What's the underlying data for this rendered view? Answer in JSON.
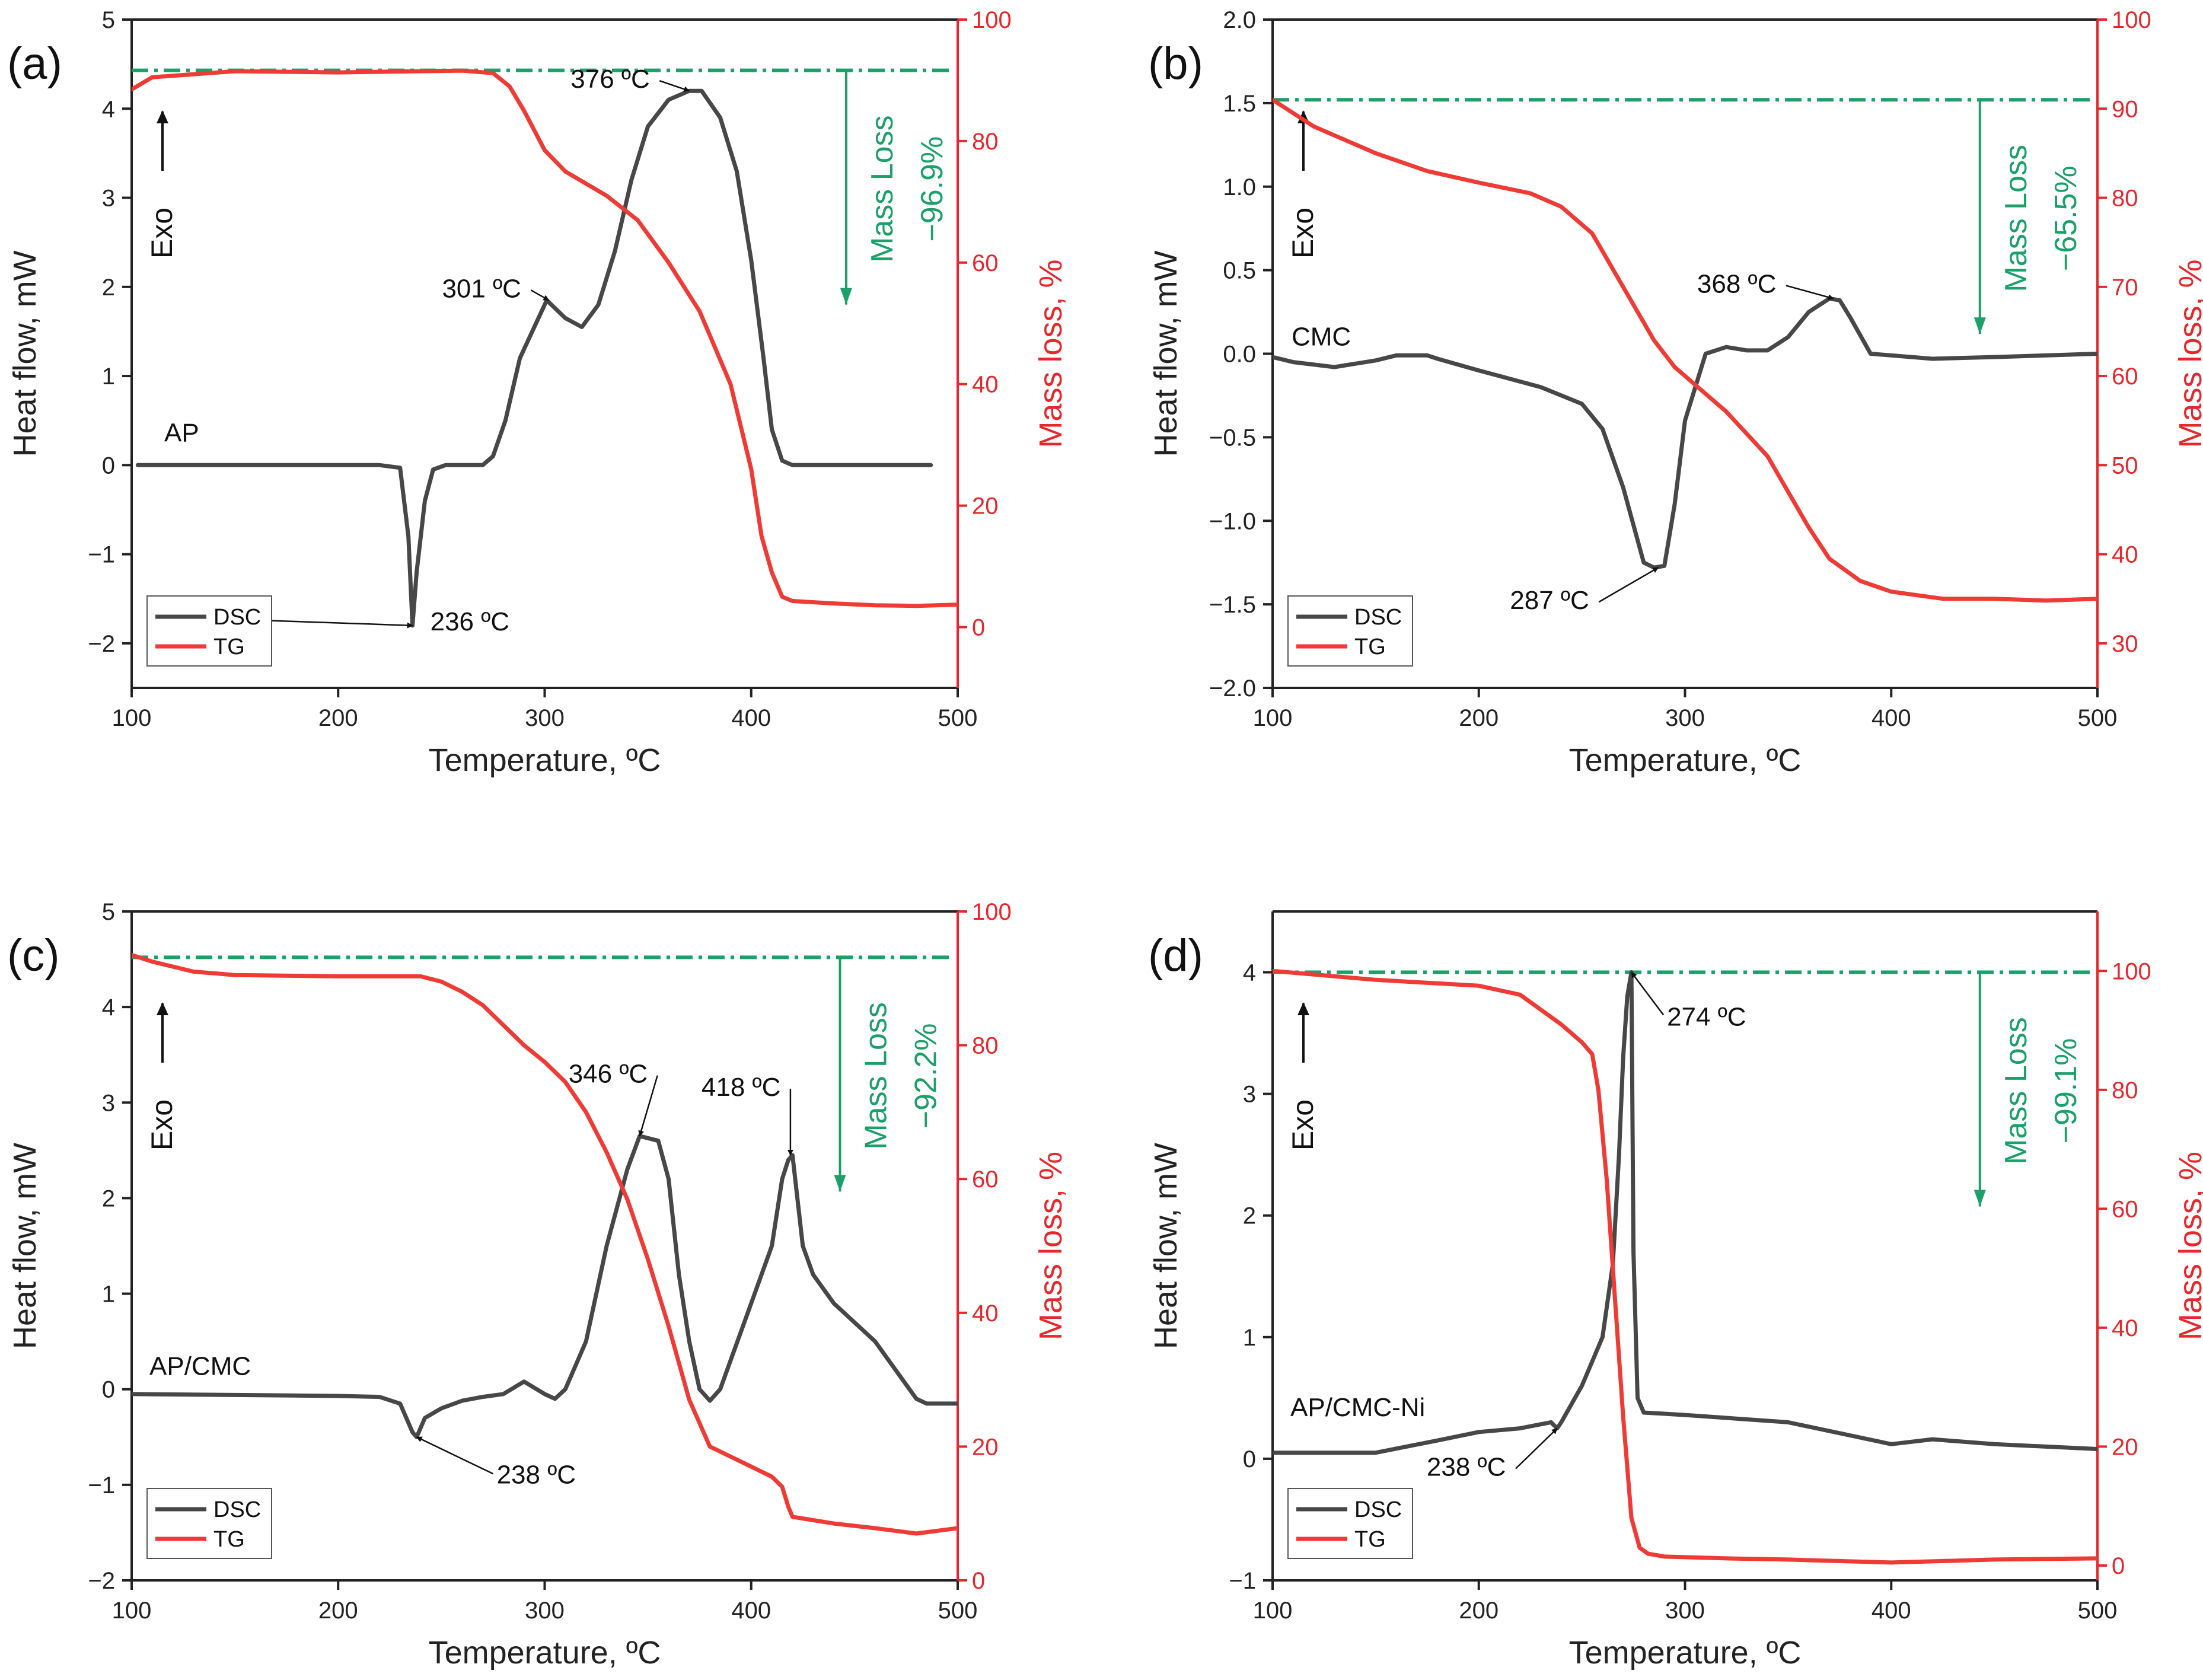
{
  "figure": {
    "colors": {
      "dsc": "#474747",
      "tg": "#ee3b36",
      "mass_loss": "#1aa068",
      "right_axis": "#e8262b",
      "axis": "#222222"
    }
  },
  "chart_data": [
    {
      "type": "line",
      "panel_label": "(a)",
      "sample_label": "AP",
      "xlabel": "Temperature, ºC",
      "ylabel_left": "Heat flow, mW",
      "ylabel_right": "Mass loss, %",
      "xlim": [
        100,
        500
      ],
      "xticks": [
        100,
        200,
        300,
        400,
        500
      ],
      "ylim_left": [
        -2.5,
        5
      ],
      "yticks_left": [
        -2,
        -1,
        0,
        1,
        2,
        3,
        4,
        5
      ],
      "ylim_right": [
        -10,
        100
      ],
      "yticks_right": [
        0,
        20,
        40,
        60,
        80,
        100
      ],
      "exo_label": "Exo",
      "mass_loss_label": "Mass Loss",
      "mass_loss_value": "−96.9%",
      "mass_loss_line_y": 4.43,
      "mass_loss_arrow_x": 446,
      "legend": [
        "DSC",
        "TG"
      ],
      "series": [
        {
          "name": "DSC",
          "axis": "left",
          "x": [
            103,
            150,
            200,
            220,
            230,
            234,
            236,
            238,
            242,
            246,
            252,
            260,
            270,
            275,
            281,
            288,
            301,
            310,
            318,
            326,
            334,
            342,
            350,
            360,
            370,
            376,
            385,
            393,
            400,
            406,
            410,
            415,
            420,
            440,
            460,
            480,
            487
          ],
          "y": [
            0,
            0,
            0,
            0,
            -0.03,
            -0.8,
            -1.8,
            -1.2,
            -0.4,
            -0.05,
            0,
            0,
            0,
            0.1,
            0.5,
            1.2,
            1.85,
            1.65,
            1.55,
            1.8,
            2.4,
            3.2,
            3.8,
            4.1,
            4.2,
            4.2,
            3.9,
            3.3,
            2.3,
            1.2,
            0.4,
            0.05,
            0,
            0,
            0,
            0,
            0
          ]
        },
        {
          "name": "TG",
          "axis": "right",
          "x": [
            100,
            110,
            130,
            150,
            200,
            240,
            260,
            275,
            283,
            290,
            300,
            310,
            330,
            345,
            360,
            375,
            390,
            400,
            405,
            410,
            415,
            420,
            440,
            460,
            480,
            500
          ],
          "y": [
            88.5,
            90.5,
            91,
            91.5,
            91.3,
            91.5,
            91.6,
            91.2,
            89,
            85,
            78.5,
            75,
            71,
            67,
            60,
            52,
            40,
            26,
            15,
            9,
            5,
            4.3,
            3.9,
            3.6,
            3.5,
            3.7
          ]
        }
      ],
      "annotations": [
        {
          "text": "376 ºC",
          "x": 370,
          "y": 4.2
        },
        {
          "text": "301 ºC",
          "x": 302,
          "y": 1.85
        },
        {
          "text": "236 ºC",
          "x": 236,
          "y": -1.8
        }
      ]
    },
    {
      "type": "line",
      "panel_label": "(b)",
      "sample_label": "CMC",
      "xlabel": "Temperature, ºC",
      "ylabel_left": "Heat flow, mW",
      "ylabel_right": "Mass loss, %",
      "xlim": [
        100,
        500
      ],
      "xticks": [
        100,
        200,
        300,
        400,
        500
      ],
      "ylim_left": [
        -2,
        2
      ],
      "yticks_left": [
        -2.0,
        -1.5,
        -1.0,
        -0.5,
        0.0,
        0.5,
        1.0,
        1.5,
        2.0
      ],
      "ylim_right": [
        25,
        100
      ],
      "yticks_right": [
        30,
        40,
        50,
        60,
        70,
        80,
        90,
        100
      ],
      "exo_label": "Exo",
      "mass_loss_label": "Mass Loss",
      "mass_loss_value": "−65.5%",
      "mass_loss_line_y": 1.52,
      "mass_loss_arrow_x": 443,
      "legend": [
        "DSC",
        "TG"
      ],
      "series": [
        {
          "name": "DSC",
          "axis": "left",
          "x": [
            100,
            110,
            130,
            150,
            160,
            175,
            180,
            200,
            230,
            250,
            260,
            270,
            280,
            285,
            290,
            295,
            300,
            310,
            320,
            330,
            340,
            350,
            360,
            370,
            375,
            380,
            390,
            420,
            450,
            500
          ],
          "y": [
            -0.02,
            -0.05,
            -0.08,
            -0.04,
            -0.01,
            -0.01,
            -0.03,
            -0.1,
            -0.2,
            -0.3,
            -0.45,
            -0.8,
            -1.25,
            -1.28,
            -1.27,
            -0.9,
            -0.4,
            0,
            0.04,
            0.02,
            0.02,
            0.1,
            0.25,
            0.33,
            0.32,
            0.22,
            0.0,
            -0.03,
            -0.02,
            0.0
          ]
        },
        {
          "name": "TG",
          "axis": "right",
          "x": [
            100,
            120,
            150,
            175,
            200,
            225,
            240,
            255,
            265,
            275,
            285,
            295,
            305,
            320,
            340,
            350,
            360,
            370,
            385,
            400,
            425,
            450,
            475,
            500
          ],
          "y": [
            91,
            88,
            85,
            83,
            81.7,
            80.5,
            79,
            76,
            72,
            68,
            64,
            61,
            59,
            56,
            51,
            47,
            43,
            39.5,
            37,
            35.8,
            35,
            35,
            34.8,
            35
          ]
        }
      ],
      "annotations": [
        {
          "text": "368 ºC",
          "x": 372,
          "y": 0.33
        },
        {
          "text": "287 ºC",
          "x": 287,
          "y": -1.28
        }
      ]
    },
    {
      "type": "line",
      "panel_label": "(c)",
      "sample_label": "AP/CMC",
      "xlabel": "Temperature, ºC",
      "ylabel_left": "Heat flow, mW",
      "ylabel_right": "Mass loss, %",
      "xlim": [
        100,
        500
      ],
      "xticks": [
        100,
        200,
        300,
        400,
        500
      ],
      "ylim_left": [
        -2,
        5
      ],
      "yticks_left": [
        -2,
        -1,
        0,
        1,
        2,
        3,
        4,
        5
      ],
      "ylim_right": [
        0,
        100
      ],
      "yticks_right": [
        0,
        20,
        40,
        60,
        80,
        100
      ],
      "exo_label": "Exo",
      "mass_loss_label": "Mass Loss",
      "mass_loss_value": "−92.2%",
      "mass_loss_line_y": 4.52,
      "mass_loss_arrow_x": 443,
      "legend": [
        "DSC",
        "TG"
      ],
      "series": [
        {
          "name": "DSC",
          "axis": "left",
          "x": [
            100,
            150,
            200,
            220,
            230,
            236,
            238,
            242,
            250,
            260,
            270,
            280,
            290,
            300,
            305,
            310,
            320,
            330,
            340,
            346,
            355,
            360,
            365,
            370,
            375,
            380,
            385,
            390,
            400,
            410,
            415,
            418,
            420,
            425,
            430,
            440,
            450,
            460,
            470,
            480,
            485,
            500
          ],
          "y": [
            -0.05,
            -0.06,
            -0.07,
            -0.08,
            -0.15,
            -0.45,
            -0.5,
            -0.3,
            -0.2,
            -0.12,
            -0.08,
            -0.05,
            0.08,
            -0.05,
            -0.1,
            0,
            0.5,
            1.5,
            2.3,
            2.65,
            2.6,
            2.2,
            1.2,
            0.5,
            0.0,
            -0.12,
            0,
            0.3,
            0.9,
            1.5,
            2.2,
            2.4,
            2.45,
            1.5,
            1.2,
            0.9,
            0.7,
            0.5,
            0.2,
            -0.1,
            -0.15,
            -0.15
          ]
        },
        {
          "name": "TG",
          "axis": "right",
          "x": [
            100,
            110,
            130,
            150,
            200,
            240,
            250,
            260,
            270,
            280,
            290,
            300,
            310,
            320,
            330,
            340,
            350,
            360,
            370,
            380,
            400,
            410,
            415,
            418,
            420,
            440,
            460,
            480,
            500
          ],
          "y": [
            93.5,
            92.5,
            91,
            90.5,
            90.3,
            90.3,
            89.5,
            88,
            86,
            83,
            80,
            77.5,
            74.5,
            70,
            64,
            57,
            48,
            38,
            27,
            20,
            17,
            15.5,
            14,
            11,
            9.5,
            8.5,
            7.8,
            7,
            7.8
          ]
        }
      ],
      "annotations": [
        {
          "text": "346 ºC",
          "x": 346,
          "y": 2.65
        },
        {
          "text": "418 ºC",
          "x": 419,
          "y": 2.45
        },
        {
          "text": "238 ºC",
          "x": 238,
          "y": -0.5
        }
      ]
    },
    {
      "type": "line",
      "panel_label": "(d)",
      "sample_label": "AP/CMC-Ni",
      "xlabel": "Temperature, ºC",
      "ylabel_left": "Heat flow, mW",
      "ylabel_right": "Mass loss, %",
      "xlim": [
        100,
        500
      ],
      "xticks": [
        100,
        200,
        300,
        400,
        500
      ],
      "ylim_left": [
        -1,
        4.5
      ],
      "yticks_left": [
        -1,
        0,
        1,
        2,
        3,
        4
      ],
      "ylim_right": [
        -2.5,
        110
      ],
      "yticks_right": [
        0,
        20,
        40,
        60,
        80,
        100
      ],
      "exo_label": "Exo",
      "mass_loss_label": "Mass Loss",
      "mass_loss_value": "−99.1%",
      "mass_loss_line_y": 4.0,
      "mass_loss_arrow_x": 443,
      "legend": [
        "DSC",
        "TG"
      ],
      "series": [
        {
          "name": "DSC",
          "axis": "left",
          "x": [
            100,
            150,
            180,
            200,
            220,
            235,
            238,
            240,
            245,
            250,
            260,
            265,
            268,
            270,
            272,
            274,
            275,
            277,
            280,
            300,
            350,
            400,
            420,
            450,
            500
          ],
          "y": [
            0.05,
            0.05,
            0.15,
            0.22,
            0.25,
            0.3,
            0.25,
            0.3,
            0.45,
            0.6,
            1.0,
            1.6,
            2.5,
            3.3,
            3.8,
            4.0,
            1.7,
            0.5,
            0.38,
            0.36,
            0.3,
            0.12,
            0.16,
            0.12,
            0.08
          ]
        },
        {
          "name": "TG",
          "axis": "right",
          "x": [
            100,
            150,
            200,
            220,
            240,
            250,
            255,
            258,
            262,
            266,
            270,
            274,
            278,
            282,
            290,
            320,
            350,
            400,
            450,
            500
          ],
          "y": [
            100,
            98.5,
            97.5,
            96,
            91,
            88,
            86,
            80,
            65,
            45,
            25,
            8,
            3,
            2,
            1.5,
            1.2,
            1,
            0.5,
            1,
            1.2
          ]
        }
      ],
      "annotations": [
        {
          "text": "274 ºC",
          "x": 274,
          "y": 4.0
        },
        {
          "text": "238 ºC",
          "x": 238,
          "y": 0.25
        }
      ]
    }
  ]
}
